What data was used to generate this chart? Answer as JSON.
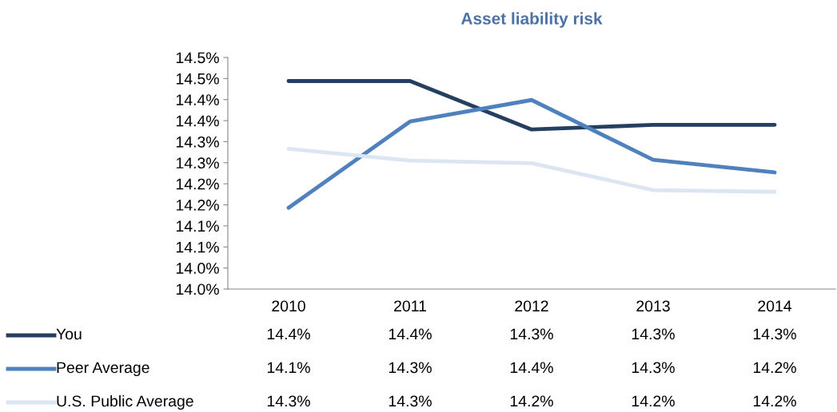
{
  "chart_data": {
    "type": "line",
    "title": "Asset liability risk",
    "categories": [
      "2010",
      "2011",
      "2012",
      "2013",
      "2014"
    ],
    "series": [
      {
        "name": "You",
        "color": "#243f60",
        "values": [
          14.444,
          14.444,
          14.329,
          14.34,
          14.34
        ],
        "value_labels": [
          "14.4%",
          "14.4%",
          "14.3%",
          "14.3%",
          "14.3%"
        ]
      },
      {
        "name": "Peer Average",
        "color": "#4f81bd",
        "values": [
          14.143,
          14.348,
          14.399,
          14.257,
          14.227
        ],
        "value_labels": [
          "14.1%",
          "14.3%",
          "14.4%",
          "14.3%",
          "14.2%"
        ]
      },
      {
        "name": "U.S. Public Average",
        "color": "#dce6f2",
        "values": [
          14.283,
          14.255,
          14.249,
          14.185,
          14.181
        ],
        "value_labels": [
          "14.3%",
          "14.3%",
          "14.2%",
          "14.2%",
          "14.2%"
        ]
      }
    ],
    "ylim": [
      13.95,
      14.5
    ],
    "yticks": [
      {
        "value": 13.95,
        "label": "14.0%"
      },
      {
        "value": 14.0,
        "label": "14.0%"
      },
      {
        "value": 14.05,
        "label": "14.1%"
      },
      {
        "value": 14.1,
        "label": "14.1%"
      },
      {
        "value": 14.15,
        "label": "14.2%"
      },
      {
        "value": 14.2,
        "label": "14.2%"
      },
      {
        "value": 14.25,
        "label": "14.3%"
      },
      {
        "value": 14.3,
        "label": "14.3%"
      },
      {
        "value": 14.35,
        "label": "14.4%"
      },
      {
        "value": 14.4,
        "label": "14.4%"
      },
      {
        "value": 14.45,
        "label": "14.5%"
      },
      {
        "value": 14.5,
        "label": "14.5%"
      }
    ],
    "grid": false,
    "legend": "bottom",
    "marker": "none",
    "line_style": "solid"
  }
}
